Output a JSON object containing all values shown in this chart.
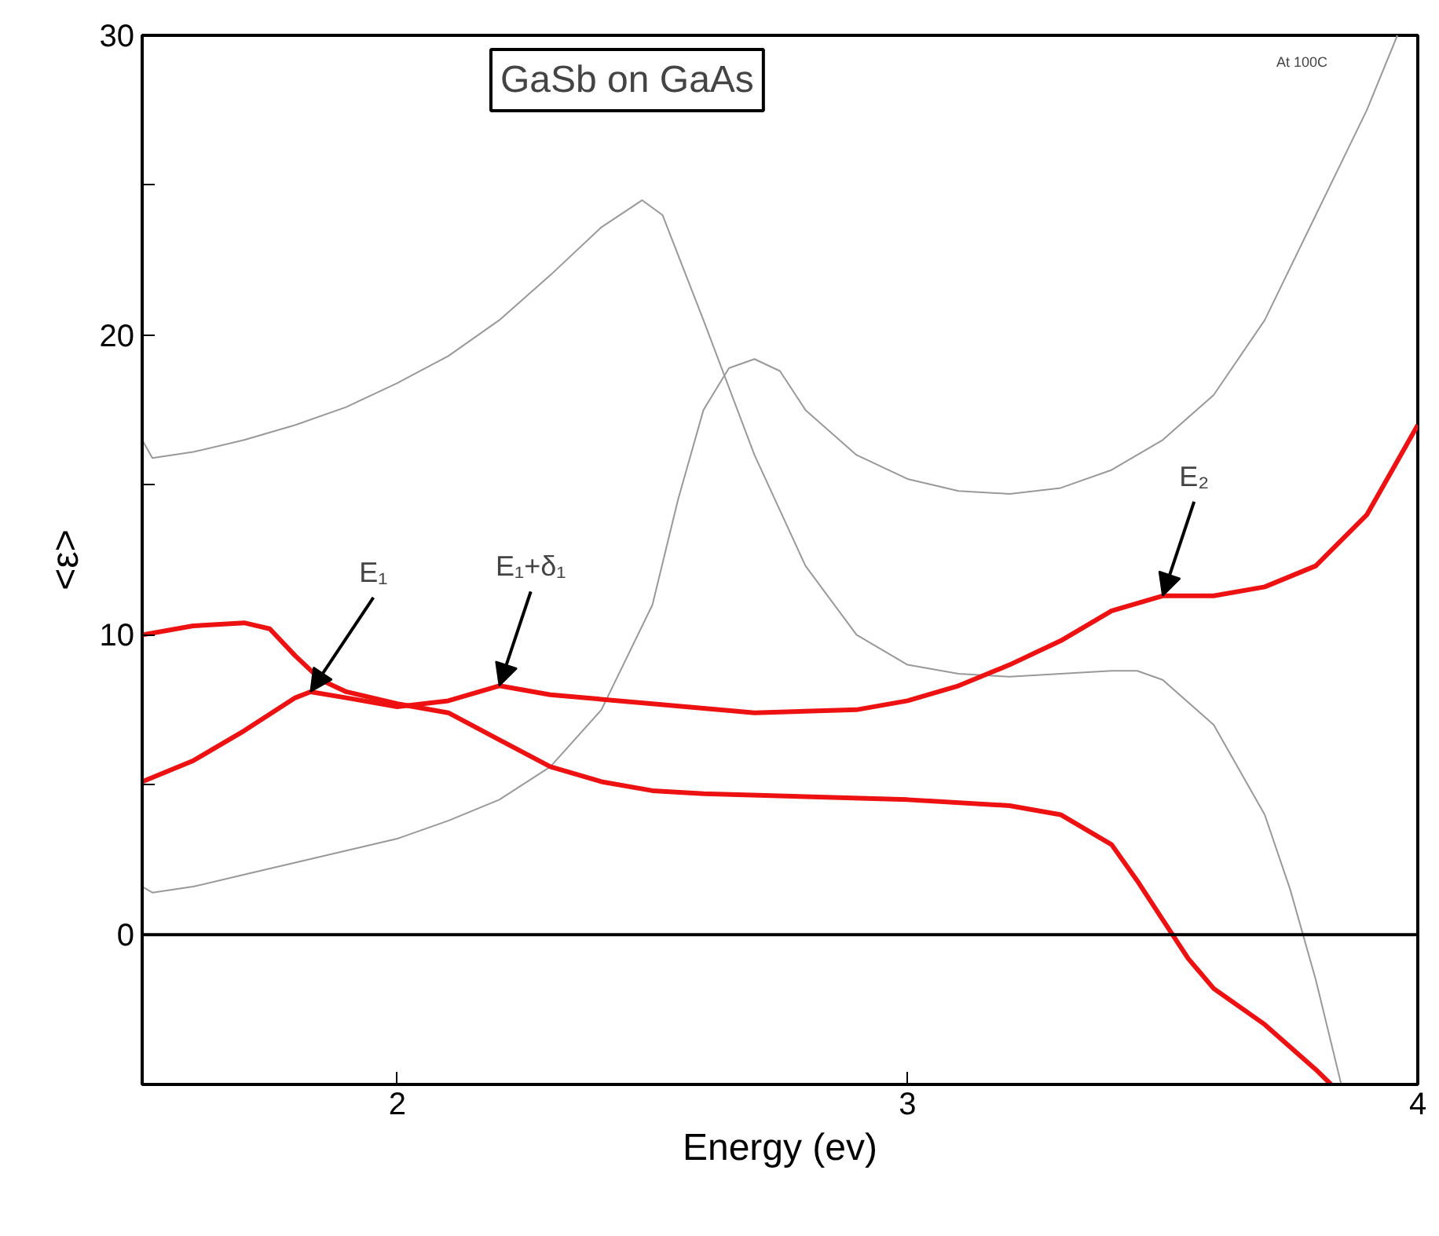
{
  "chart_data": {
    "type": "line",
    "title": "GaSb on GaAs",
    "xlabel": "Energy (ev)",
    "ylabel": "<ε>",
    "xlim": [
      1.5,
      4
    ],
    "ylim": [
      -5,
      30
    ],
    "xticks": [
      2,
      3,
      4
    ],
    "yticks": [
      0,
      {
        "value": 5,
        "label": null
      },
      10,
      {
        "value": 15,
        "label": null
      },
      20,
      {
        "value": 25,
        "label": null
      },
      30
    ],
    "grid": false,
    "marker": "none",
    "line_style": "solid",
    "ref_lines": [
      {
        "axis": "y",
        "value": 0,
        "color": "#000000"
      }
    ],
    "annotations": [
      "At 100C",
      {
        "text": "E₁",
        "x": 1.83,
        "y": 8.1
      },
      {
        "text": "E₁+δ₁",
        "x": 2.2,
        "y": 8.3
      },
      {
        "text": "E₂",
        "x": 3.5,
        "y": 11.3
      }
    ],
    "series": [
      {
        "color": "#999999",
        "x": [
          1.5,
          1.52,
          1.6,
          1.7,
          1.8,
          1.9,
          2.0,
          2.1,
          2.2,
          2.3,
          2.4,
          2.48,
          2.52,
          2.6,
          2.7,
          2.8,
          2.9,
          3.0,
          3.1,
          3.2,
          3.3,
          3.4,
          3.45,
          3.5,
          3.6,
          3.7,
          3.75,
          3.8,
          3.85
        ],
        "values": [
          16.5,
          15.9,
          16.1,
          16.5,
          17.0,
          17.6,
          18.4,
          19.3,
          20.5,
          22.0,
          23.6,
          24.5,
          24.0,
          20.5,
          16.0,
          12.3,
          10.0,
          9.0,
          8.7,
          8.6,
          8.7,
          8.8,
          8.8,
          8.5,
          7.0,
          4.0,
          1.5,
          -1.5,
          -5
        ]
      },
      {
        "color": "#999999",
        "x": [
          1.5,
          1.52,
          1.6,
          1.7,
          1.8,
          1.9,
          2.0,
          2.1,
          2.2,
          2.3,
          2.4,
          2.5,
          2.55,
          2.6,
          2.65,
          2.7,
          2.75,
          2.8,
          2.9,
          3.0,
          3.1,
          3.2,
          3.3,
          3.4,
          3.5,
          3.6,
          3.7,
          3.8,
          3.9,
          3.96
        ],
        "values": [
          1.6,
          1.4,
          1.6,
          2.0,
          2.4,
          2.8,
          3.2,
          3.8,
          4.5,
          5.6,
          7.5,
          11.0,
          14.5,
          17.5,
          18.9,
          19.2,
          18.8,
          17.5,
          16.0,
          15.2,
          14.8,
          14.7,
          14.9,
          15.5,
          16.5,
          18.0,
          20.5,
          24.0,
          27.5,
          30
        ]
      },
      {
        "color": "#ee1111",
        "x": [
          1.5,
          1.6,
          1.7,
          1.75,
          1.8,
          1.85,
          1.9,
          2.0,
          2.1,
          2.2,
          2.3,
          2.4,
          2.5,
          2.6,
          2.8,
          3.0,
          3.2,
          3.3,
          3.4,
          3.45,
          3.5,
          3.55,
          3.6,
          3.7,
          3.8,
          3.83
        ],
        "values": [
          10.0,
          10.3,
          10.4,
          10.2,
          9.3,
          8.5,
          8.1,
          7.7,
          7.4,
          6.5,
          5.6,
          5.1,
          4.8,
          4.7,
          4.6,
          4.5,
          4.3,
          4.0,
          3.0,
          1.8,
          0.5,
          -0.8,
          -1.8,
          -3.0,
          -4.5,
          -5
        ]
      },
      {
        "color": "#ee1111",
        "x": [
          1.5,
          1.6,
          1.7,
          1.8,
          1.83,
          1.9,
          2.0,
          2.1,
          2.2,
          2.3,
          2.5,
          2.7,
          2.9,
          3.0,
          3.1,
          3.2,
          3.3,
          3.4,
          3.5,
          3.6,
          3.7,
          3.8,
          3.9,
          4.0
        ],
        "values": [
          5.1,
          5.8,
          6.8,
          7.9,
          8.1,
          7.9,
          7.6,
          7.8,
          8.3,
          8.0,
          7.7,
          7.4,
          7.5,
          7.8,
          8.3,
          9.0,
          9.8,
          10.8,
          11.3,
          11.3,
          11.6,
          12.3,
          14.0,
          17.0
        ]
      }
    ]
  }
}
